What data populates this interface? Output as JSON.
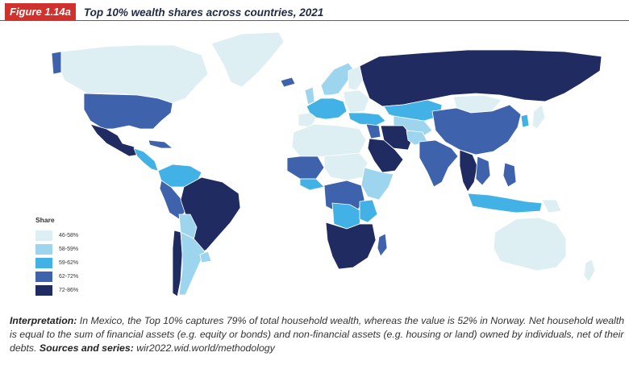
{
  "header": {
    "figure_label": "Figure 1.14a",
    "title": "Top 10% wealth shares across countries, 2021"
  },
  "legend": {
    "title": "Share",
    "items": [
      {
        "label": "46-58%",
        "color": "#deeff4"
      },
      {
        "label": "58-59%",
        "color": "#9ed5ee"
      },
      {
        "label": "59-62%",
        "color": "#42b2e6"
      },
      {
        "label": "62-72%",
        "color": "#3f62ad"
      },
      {
        "label": "72-86%",
        "color": "#1f2b61"
      }
    ]
  },
  "note": {
    "interp_label": "Interpretation:",
    "interp_text": " In Mexico, the Top 10% captures 79% of total household wealth, whereas the value is 52% in Norway. Net household wealth is equal to the sum of financial assets (e.g. equity or bonds) and non-financial assets (e.g. housing or land) owned by individuals, net of their debts. ",
    "sources_label": "Sources and series:",
    "sources_text": " wir2022.wid.world/methodology"
  }
}
